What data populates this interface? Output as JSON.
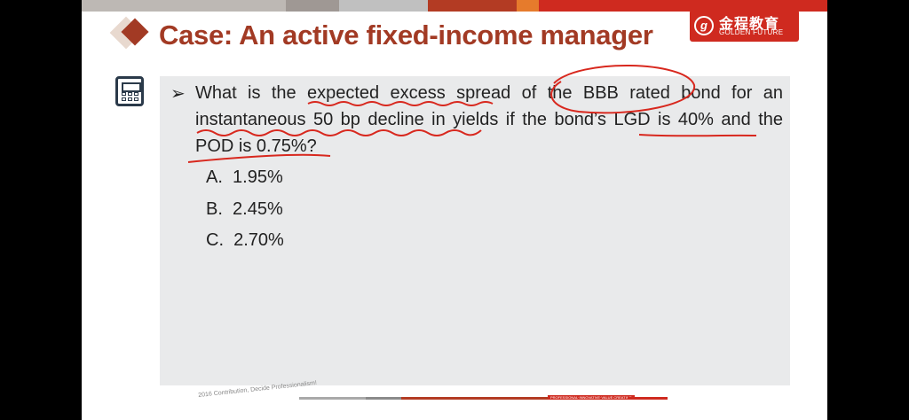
{
  "slide": {
    "title": "Case: An active fixed-income manager",
    "colors": {
      "accent": "#a23a24",
      "brand_red": "#cf2a1f",
      "panel": "#e9eaeb",
      "annotation": "#d8281e"
    }
  },
  "logo": {
    "mark": "g",
    "chinese": "金程教育",
    "english": "GOLDEN FUTURE"
  },
  "question": {
    "bullet": "➢",
    "lines": [
      "What is the expected excess spread of the BBB rated bond for an",
      "instantaneous 50 bp decline in yields if the bond’s LGD is 40% and the",
      "POD is 0.75%?"
    ]
  },
  "options": [
    {
      "label": "A.",
      "value": "1.95%"
    },
    {
      "label": "B.",
      "value": "2.45%"
    },
    {
      "label": "C.",
      "value": "2.70%"
    }
  ],
  "footer": {
    "slogan": "2016 Contribution, Decide Professionalism!",
    "tag": "PROFESSIONAL·INNOVATIVE·VALUE CREATING"
  },
  "icons": [
    "calculator-icon",
    "diamond-bullet-icon",
    "arrow-bullet-icon"
  ]
}
